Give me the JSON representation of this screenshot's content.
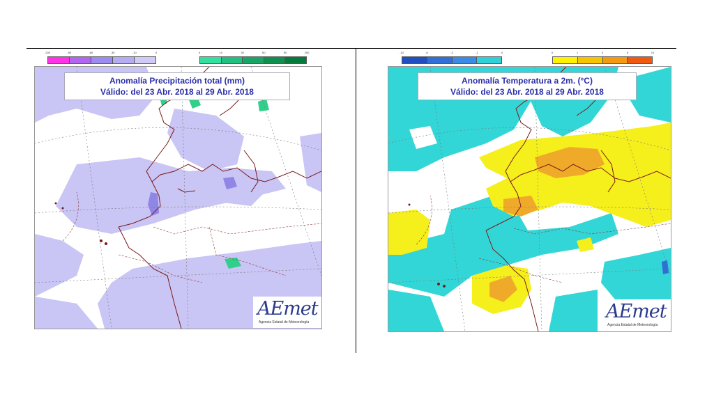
{
  "maps": {
    "precipitation": {
      "title_line1": "Anomalía Precipitación total (mm)",
      "title_line2": "Válido: del 23 Abr. 2018 al 29 Abr. 2018",
      "legend_negative": {
        "ticks": [
          "-200",
          "-90",
          "-60",
          "-30",
          "-10",
          "0"
        ],
        "colors": [
          "#ff33e6",
          "#b066ee",
          "#9d8cf0",
          "#b4adf2",
          "#cfcbf6"
        ]
      },
      "legend_positive": {
        "ticks": [
          "0",
          "10",
          "30",
          "60",
          "90",
          "200"
        ],
        "colors": [
          "#33e0a0",
          "#22c080",
          "#1aa566",
          "#10904e",
          "#067a3a"
        ]
      },
      "field_color": "#c9c5f4",
      "dark_patch_color": "#8f86e6",
      "wet_patch_color": "#2fd08a"
    },
    "temperature": {
      "title_line1": "Anomalía Temperatura a 2m. (°C)",
      "title_line2": "Válido: del 23 Abr. 2018 al 29 Abr. 2018",
      "legend_negative": {
        "ticks": [
          "-10",
          "-6",
          "-3",
          "-1",
          "0"
        ],
        "colors": [
          "#1f4fc0",
          "#2f6fd6",
          "#3a8ae6",
          "#2fd0d8"
        ]
      },
      "legend_positive": {
        "ticks": [
          "0",
          "1",
          "3",
          "6",
          "10"
        ],
        "colors": [
          "#fff200",
          "#f8c400",
          "#f39a10",
          "#ef5a10"
        ]
      },
      "cold_color": "#33d6d6",
      "warm_color": "#f5ef1c",
      "hot_color": "#f0aa2a"
    }
  },
  "logo": {
    "wordmark": "AEmet",
    "agency": "Agencia Estatal de Meteorología"
  },
  "colors": {
    "coastline": "#7a1a1a",
    "border": "#8b3a3a",
    "title_text": "#2b2fa8"
  }
}
